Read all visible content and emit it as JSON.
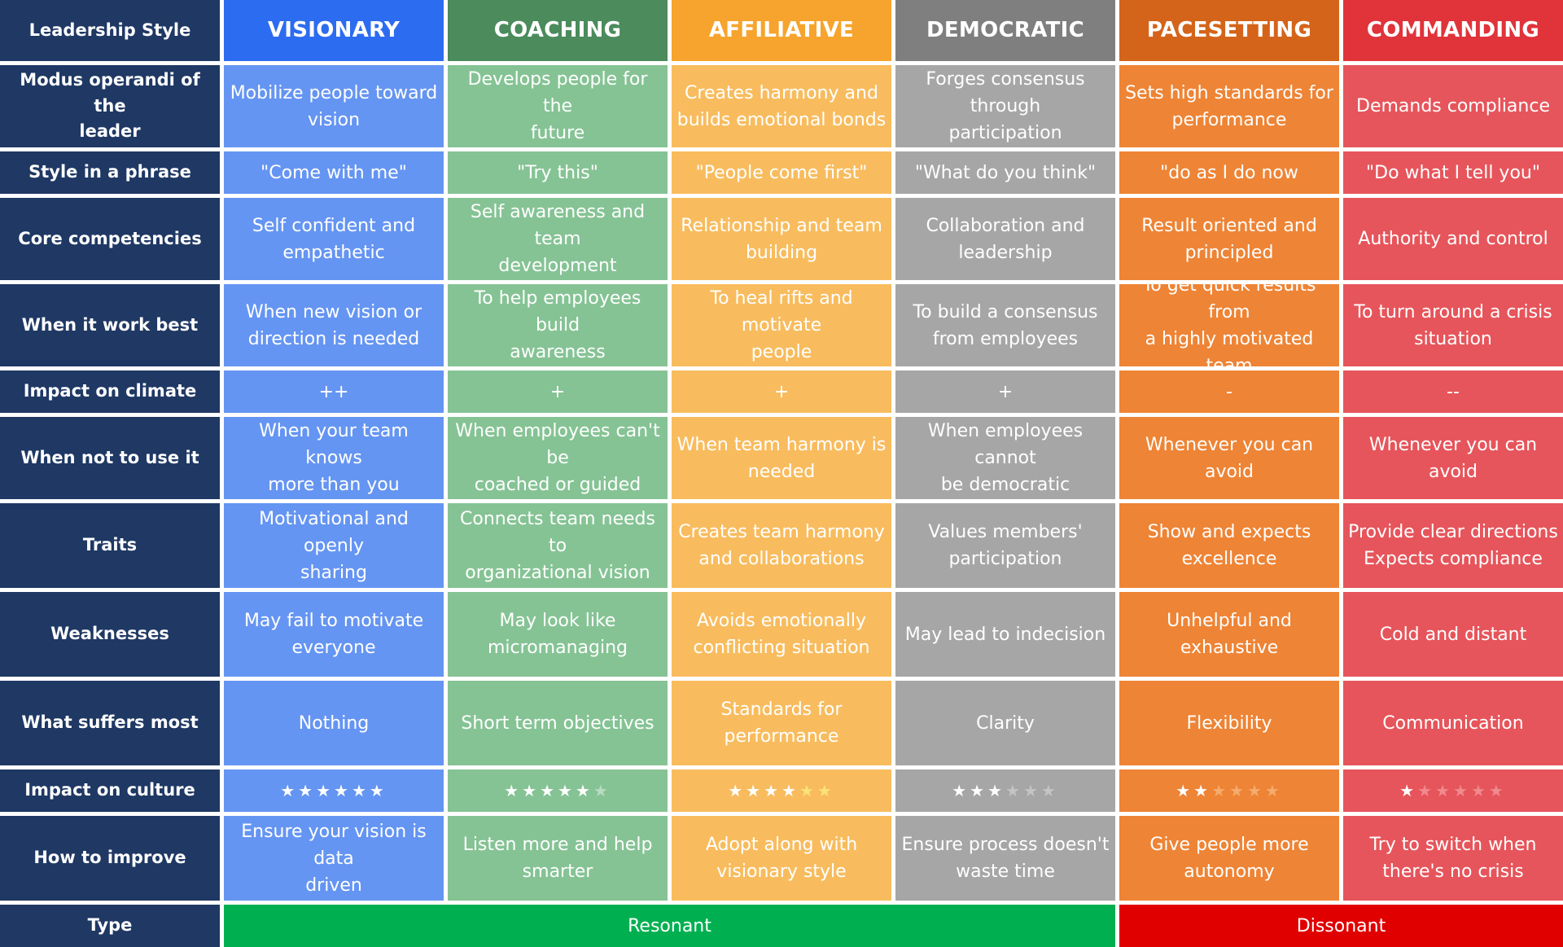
{
  "corner_label": "Leadership Style",
  "styles": [
    {
      "name": "VISIONARY",
      "header_color": "#2c6cf0",
      "cell_color": "#6595f2",
      "dim_star_color": "#8fb3f6"
    },
    {
      "name": "COACHING",
      "header_color": "#4b8b5c",
      "cell_color": "#85c394",
      "dim_star_color": "#b9dcc1"
    },
    {
      "name": "AFFILIATIVE",
      "header_color": "#f6a42d",
      "cell_color": "#f8bc5e",
      "dim_star_color": "#fbe27a"
    },
    {
      "name": "DEMOCRATIC",
      "header_color": "#7f7f7f",
      "cell_color": "#a6a6a6",
      "dim_star_color": "#c4c4c4"
    },
    {
      "name": "PACESETTING",
      "header_color": "#d4641a",
      "cell_color": "#ee8435",
      "dim_star_color": "#f6ab6f"
    },
    {
      "name": "COMMANDING",
      "header_color": "#e0333a",
      "cell_color": "#e6555b",
      "dim_star_color": "#f08a8e"
    }
  ],
  "rows": [
    {
      "label": "Modus operandi of the\nleader",
      "values": [
        "Mobilize people toward\nvision",
        "Develops people for the\nfuture",
        "Creates harmony and\nbuilds emotional bonds",
        "Forges consensus through\nparticipation",
        "Sets high standards for\nperformance",
        "Demands compliance"
      ]
    },
    {
      "label": "Style in a phrase",
      "values": [
        "\"Come with me\"",
        "\"Try this\"",
        "\"People come first\"",
        "\"What do you think\"",
        "\"do as I do now",
        "\"Do what I tell you\""
      ]
    },
    {
      "label": "Core competencies",
      "values": [
        "Self confident and\nempathetic",
        "Self awareness and team\ndevelopment",
        "Relationship and team\nbuilding",
        "Collaboration and\nleadership",
        "Result oriented and\nprincipled",
        "Authority and control"
      ]
    },
    {
      "label": "When it work best",
      "values": [
        "When new vision or\ndirection is needed",
        "To help employees build\nawareness",
        "To heal rifts and motivate\npeople",
        "To build a consensus\nfrom employees",
        "To get quick results from\na highly motivated team",
        "To turn around a crisis\nsituation"
      ]
    },
    {
      "label": "Impact on climate",
      "values": [
        "++",
        "+",
        "+",
        "+",
        "-",
        "--"
      ]
    },
    {
      "label": "When not to use it",
      "values": [
        "When your team knows\nmore than you",
        "When employees can't be\ncoached or guided",
        "When team harmony is\nneeded",
        "When employees cannot\nbe democratic",
        "Whenever you can avoid",
        "Whenever you can avoid"
      ]
    },
    {
      "label": "Traits",
      "values": [
        "Motivational and openly\nsharing",
        "Connects team needs to\norganizational vision",
        "Creates team harmony\nand collaborations",
        "Values members'\nparticipation",
        "Show and expects\nexcellence",
        "Provide clear directions\nExpects compliance"
      ]
    },
    {
      "label": "Weaknesses",
      "values": [
        "May fail to motivate\neveryone",
        "May look like\nmicromanaging",
        "Avoids emotionally\nconflicting situation",
        "May lead to indecision",
        "Unhelpful and exhaustive",
        "Cold and distant"
      ]
    },
    {
      "label": "What suffers most",
      "values": [
        "Nothing",
        "Short term objectives",
        "Standards for\nperformance",
        "Clarity",
        "Flexibility",
        "Communication"
      ]
    }
  ],
  "culture": {
    "label": "Impact on culture",
    "max_stars": 6,
    "ratings": [
      6,
      5,
      4,
      3,
      2,
      1
    ]
  },
  "improve": {
    "label": "How to improve",
    "values": [
      "Ensure your vision is data\ndriven",
      "Listen more and help\nsmarter",
      "Adopt along with\nvisionary style",
      "Ensure process doesn't\nwaste time",
      "Give people more\nautonomy",
      "Try to switch when\nthere's no crisis"
    ]
  },
  "type": {
    "label": "Type",
    "groups": [
      {
        "name": "Resonant",
        "span": 4,
        "color": "#00b050"
      },
      {
        "name": "Dissonant",
        "span": 2,
        "color": "#e00000"
      }
    ]
  }
}
